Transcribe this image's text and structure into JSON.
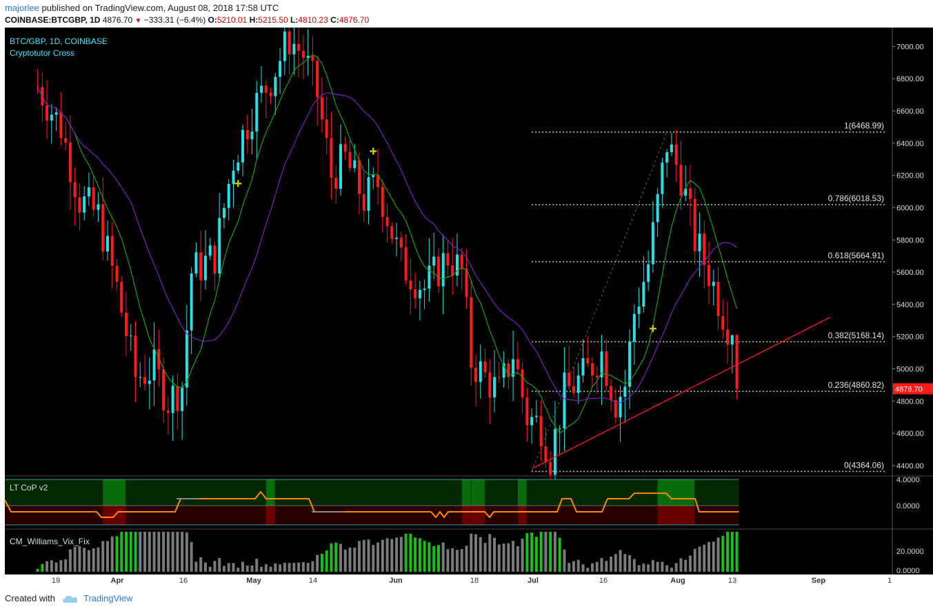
{
  "header": {
    "user": "majorlee",
    "published": "published on TradingView.com, August 08, 2018 17:58 UTC"
  },
  "ohlc_bar": {
    "symbol": "COINBASE:BTCGBP, 1D",
    "last": "4876.70",
    "arrow": "▼",
    "change": "−333.31 (−6.4%)",
    "o_label": "O:",
    "o": "5210.01",
    "h_label": "H:",
    "h": "5215.50",
    "l_label": "L:",
    "l": "4810.23",
    "c_label": "C:",
    "c": "4876.70"
  },
  "colors": {
    "background": "#000000",
    "bull": "#26e0e8",
    "bear": "#ff1a1a",
    "ma_fast": "#16a316",
    "ma_slow": "#7a22c8",
    "trendline": "#ff1a1a",
    "fib": "#cccccc",
    "cross_marker": "#c8c800",
    "axis_text": "#dddddd",
    "price_tag": "#ff1a1a"
  },
  "chart_data": [
    {
      "type": "candlestick",
      "title": "BTC/GBP, 1D, COINBASE",
      "subtitle": "Cryptotutor Cross",
      "y_ticks": [
        "7000.00",
        "6800.00",
        "6600.00",
        "6400.00",
        "6200.00",
        "6000.00",
        "5800.00",
        "5600.00",
        "5400.00",
        "5200.00",
        "5000.00",
        "4800.00",
        "4600.00",
        "4400.00"
      ],
      "ylim": [
        4340,
        7100
      ],
      "x_ticks": [
        "19",
        "Apr",
        "16",
        "May",
        "14",
        "Jun",
        "18",
        "Jul",
        "16",
        "Aug",
        "13",
        "Sep",
        "1"
      ],
      "last_price_label": "4876.70",
      "fib_levels": [
        {
          "ratio": "1",
          "price": 6468.99,
          "label": "1(6468.99)"
        },
        {
          "ratio": "0.786",
          "price": 6018.53,
          "label": "0.786(6018.53)"
        },
        {
          "ratio": "0.618",
          "price": 5664.91,
          "label": "0.618(5664.91)"
        },
        {
          "ratio": "0.382",
          "price": 5168.14,
          "label": "0.382(5168.14)"
        },
        {
          "ratio": "0.236",
          "price": 4860.82,
          "label": "0.236(4860.82)"
        },
        {
          "ratio": "0",
          "price": 4364.06,
          "label": "0(4364.06)"
        }
      ],
      "close_anchors": [
        {
          "date": "2018-03-11",
          "close": 6750
        },
        {
          "date": "2018-03-16",
          "close": 6500
        },
        {
          "date": "2018-03-20",
          "close": 6050
        },
        {
          "date": "2018-03-24",
          "close": 5950
        },
        {
          "date": "2018-03-28",
          "close": 5500
        },
        {
          "date": "2018-04-01",
          "close": 4950
        },
        {
          "date": "2018-04-05",
          "close": 5000
        },
        {
          "date": "2018-04-08",
          "close": 4800
        },
        {
          "date": "2018-04-11",
          "close": 4900
        },
        {
          "date": "2018-04-13",
          "close": 5600
        },
        {
          "date": "2018-04-18",
          "close": 5700
        },
        {
          "date": "2018-04-22",
          "close": 6300
        },
        {
          "date": "2018-04-26",
          "close": 6600
        },
        {
          "date": "2018-04-30",
          "close": 6800
        },
        {
          "date": "2018-05-04",
          "close": 7050
        },
        {
          "date": "2018-05-07",
          "close": 6950
        },
        {
          "date": "2018-05-10",
          "close": 6700
        },
        {
          "date": "2018-05-13",
          "close": 6200
        },
        {
          "date": "2018-05-16",
          "close": 6300
        },
        {
          "date": "2018-05-20",
          "close": 6050
        },
        {
          "date": "2018-05-23",
          "close": 6150
        },
        {
          "date": "2018-05-28",
          "close": 5650
        },
        {
          "date": "2018-06-02",
          "close": 5500
        },
        {
          "date": "2018-06-07",
          "close": 5700
        },
        {
          "date": "2018-06-10",
          "close": 5600
        },
        {
          "date": "2018-06-12",
          "close": 5050
        },
        {
          "date": "2018-06-15",
          "close": 4950
        },
        {
          "date": "2018-06-18",
          "close": 4850
        },
        {
          "date": "2018-06-21",
          "close": 5100
        },
        {
          "date": "2018-06-24",
          "close": 4700
        },
        {
          "date": "2018-06-27",
          "close": 4650
        },
        {
          "date": "2018-06-29",
          "close": 4450
        },
        {
          "date": "2018-07-02",
          "close": 4850
        },
        {
          "date": "2018-07-06",
          "close": 4950
        },
        {
          "date": "2018-07-10",
          "close": 5100
        },
        {
          "date": "2018-07-13",
          "close": 4800
        },
        {
          "date": "2018-07-15",
          "close": 4900
        },
        {
          "date": "2018-07-17",
          "close": 5350
        },
        {
          "date": "2018-07-20",
          "close": 5650
        },
        {
          "date": "2018-07-24",
          "close": 6400
        },
        {
          "date": "2018-07-27",
          "close": 6200
        },
        {
          "date": "2018-07-30",
          "close": 5800
        },
        {
          "date": "2018-08-02",
          "close": 5600
        },
        {
          "date": "2018-08-05",
          "close": 5350
        },
        {
          "date": "2018-08-07",
          "close": 5210
        },
        {
          "date": "2018-08-08",
          "close": 4876.7
        }
      ],
      "last_candle": {
        "date": "2018-08-08",
        "open": 5210.01,
        "high": 5215.5,
        "low": 4810.23,
        "close": 4876.7
      },
      "cross_markers": [
        {
          "date": "2018-04-23",
          "price": 6150
        },
        {
          "date": "2018-05-22",
          "price": 6350
        },
        {
          "date": "2018-07-21",
          "price": 5250
        }
      ],
      "trendline": {
        "from": {
          "date": "2018-06-25",
          "price": 4380
        },
        "to": {
          "date": "2018-08-28",
          "price": 5320
        }
      },
      "fib_anchor_line": {
        "from": {
          "date": "2018-06-25",
          "price": 4364.06
        },
        "to": {
          "date": "2018-07-24",
          "price": 6468.99
        }
      }
    },
    {
      "type": "line",
      "title": "LT CoP v2",
      "y_ticks": [
        "4.0000",
        "0.0000"
      ],
      "bands": [
        "green",
        "dark-red"
      ]
    },
    {
      "type": "bar",
      "title": "CM_Williams_Vix_Fix",
      "y_ticks": [
        "20.0000",
        "0.0000"
      ]
    }
  ],
  "footer": {
    "created_with": "Created with",
    "brand": "TradingView"
  }
}
